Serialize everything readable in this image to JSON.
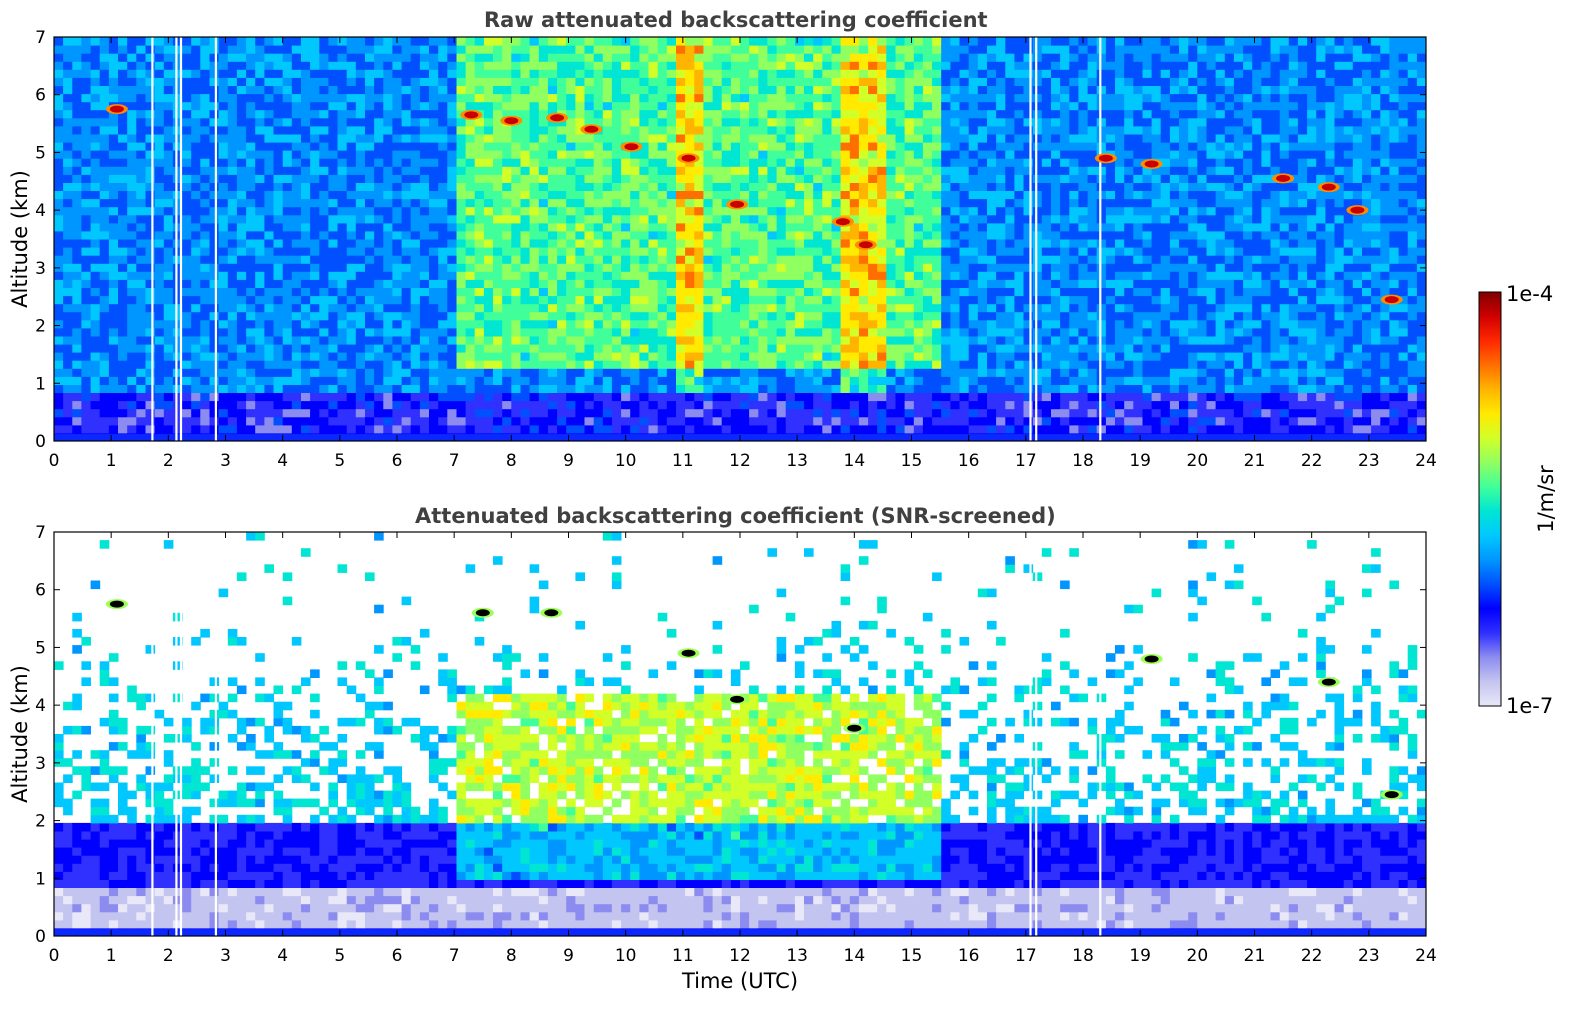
{
  "chart_data": [
    {
      "type": "heatmap",
      "title": "Raw attenuated backscattering coefficient",
      "xlabel": "",
      "ylabel": "Altitude (km)",
      "xlim": [
        0,
        24
      ],
      "ylim": [
        0,
        7
      ],
      "xticks": [
        "0",
        "1",
        "2",
        "3",
        "4",
        "5",
        "6",
        "7",
        "8",
        "9",
        "10",
        "11",
        "12",
        "13",
        "14",
        "15",
        "16",
        "17",
        "18",
        "19",
        "20",
        "21",
        "22",
        "23",
        "24"
      ],
      "yticks": [
        "0",
        "1",
        "2",
        "3",
        "4",
        "5",
        "6",
        "7"
      ],
      "gaps_time_utc": [
        1.72,
        2.14,
        2.22,
        2.83,
        17.08,
        17.18,
        18.3
      ],
      "features": [
        {
          "kind": "layer",
          "t0": 7.0,
          "t1": 15.5,
          "z0": 1.2,
          "z1": 7.0,
          "level": "elevated"
        },
        {
          "kind": "column",
          "t0": 10.9,
          "t1": 11.35,
          "level": "elevated"
        },
        {
          "kind": "column",
          "t0": 13.7,
          "t1": 14.6,
          "level": "elevated"
        },
        {
          "kind": "cloud",
          "t": 1.1,
          "z": 5.75
        },
        {
          "kind": "cloud",
          "t": 7.3,
          "z": 5.65
        },
        {
          "kind": "cloud",
          "t": 8.0,
          "z": 5.55
        },
        {
          "kind": "cloud",
          "t": 8.8,
          "z": 5.6
        },
        {
          "kind": "cloud",
          "t": 9.4,
          "z": 5.4
        },
        {
          "kind": "cloud",
          "t": 10.1,
          "z": 5.1
        },
        {
          "kind": "cloud",
          "t": 11.1,
          "z": 4.9
        },
        {
          "kind": "cloud",
          "t": 11.95,
          "z": 4.1
        },
        {
          "kind": "cloud",
          "t": 13.8,
          "z": 3.8
        },
        {
          "kind": "cloud",
          "t": 14.2,
          "z": 3.4
        },
        {
          "kind": "cloud",
          "t": 18.4,
          "z": 4.9
        },
        {
          "kind": "cloud",
          "t": 19.2,
          "z": 4.8
        },
        {
          "kind": "cloud",
          "t": 21.5,
          "z": 4.55
        },
        {
          "kind": "cloud",
          "t": 22.3,
          "z": 4.4
        },
        {
          "kind": "cloud",
          "t": 22.8,
          "z": 4.0
        },
        {
          "kind": "cloud",
          "t": 23.4,
          "z": 2.45
        }
      ]
    },
    {
      "type": "heatmap",
      "title": "Attenuated backscattering coefficient (SNR-screened)",
      "xlabel": "Time (UTC)",
      "ylabel": "Altitude (km)",
      "xlim": [
        0,
        24
      ],
      "ylim": [
        0,
        7
      ],
      "xticks": [
        "0",
        "1",
        "2",
        "3",
        "4",
        "5",
        "6",
        "7",
        "8",
        "9",
        "10",
        "11",
        "12",
        "13",
        "14",
        "15",
        "16",
        "17",
        "18",
        "19",
        "20",
        "21",
        "22",
        "23",
        "24"
      ],
      "yticks": [
        "0",
        "1",
        "2",
        "3",
        "4",
        "5",
        "6",
        "7"
      ],
      "gaps_time_utc": [
        1.72,
        2.14,
        2.22,
        2.83,
        17.08,
        17.18,
        18.3
      ],
      "features": [
        {
          "kind": "layer",
          "t0": 7.0,
          "t1": 15.5,
          "z0": 1.0,
          "z1": 4.2,
          "level": "elevated"
        },
        {
          "kind": "cloud",
          "t": 1.1,
          "z": 5.75
        },
        {
          "kind": "cloud",
          "t": 7.5,
          "z": 5.6
        },
        {
          "kind": "cloud",
          "t": 8.7,
          "z": 5.6
        },
        {
          "kind": "cloud",
          "t": 11.1,
          "z": 4.9
        },
        {
          "kind": "cloud",
          "t": 11.95,
          "z": 4.1
        },
        {
          "kind": "cloud",
          "t": 14.0,
          "z": 3.6
        },
        {
          "kind": "cloud",
          "t": 19.2,
          "z": 4.8
        },
        {
          "kind": "cloud",
          "t": 22.3,
          "z": 4.4
        },
        {
          "kind": "cloud",
          "t": 23.4,
          "z": 2.45
        }
      ]
    }
  ],
  "colorbar": {
    "max_label": "1e-4",
    "min_label": "1e-7",
    "unit_label": "1/m/sr",
    "scale": "log",
    "colors": [
      "#e8e8f8",
      "#c4c4f0",
      "#8c8cf0",
      "#3030ff",
      "#0000ff",
      "#0050ff",
      "#0096ff",
      "#00c8ff",
      "#00e6d2",
      "#40ff9a",
      "#90ff60",
      "#d2ff28",
      "#ffea00",
      "#ffb400",
      "#ff6e00",
      "#ff2800",
      "#d00000",
      "#800000"
    ]
  }
}
